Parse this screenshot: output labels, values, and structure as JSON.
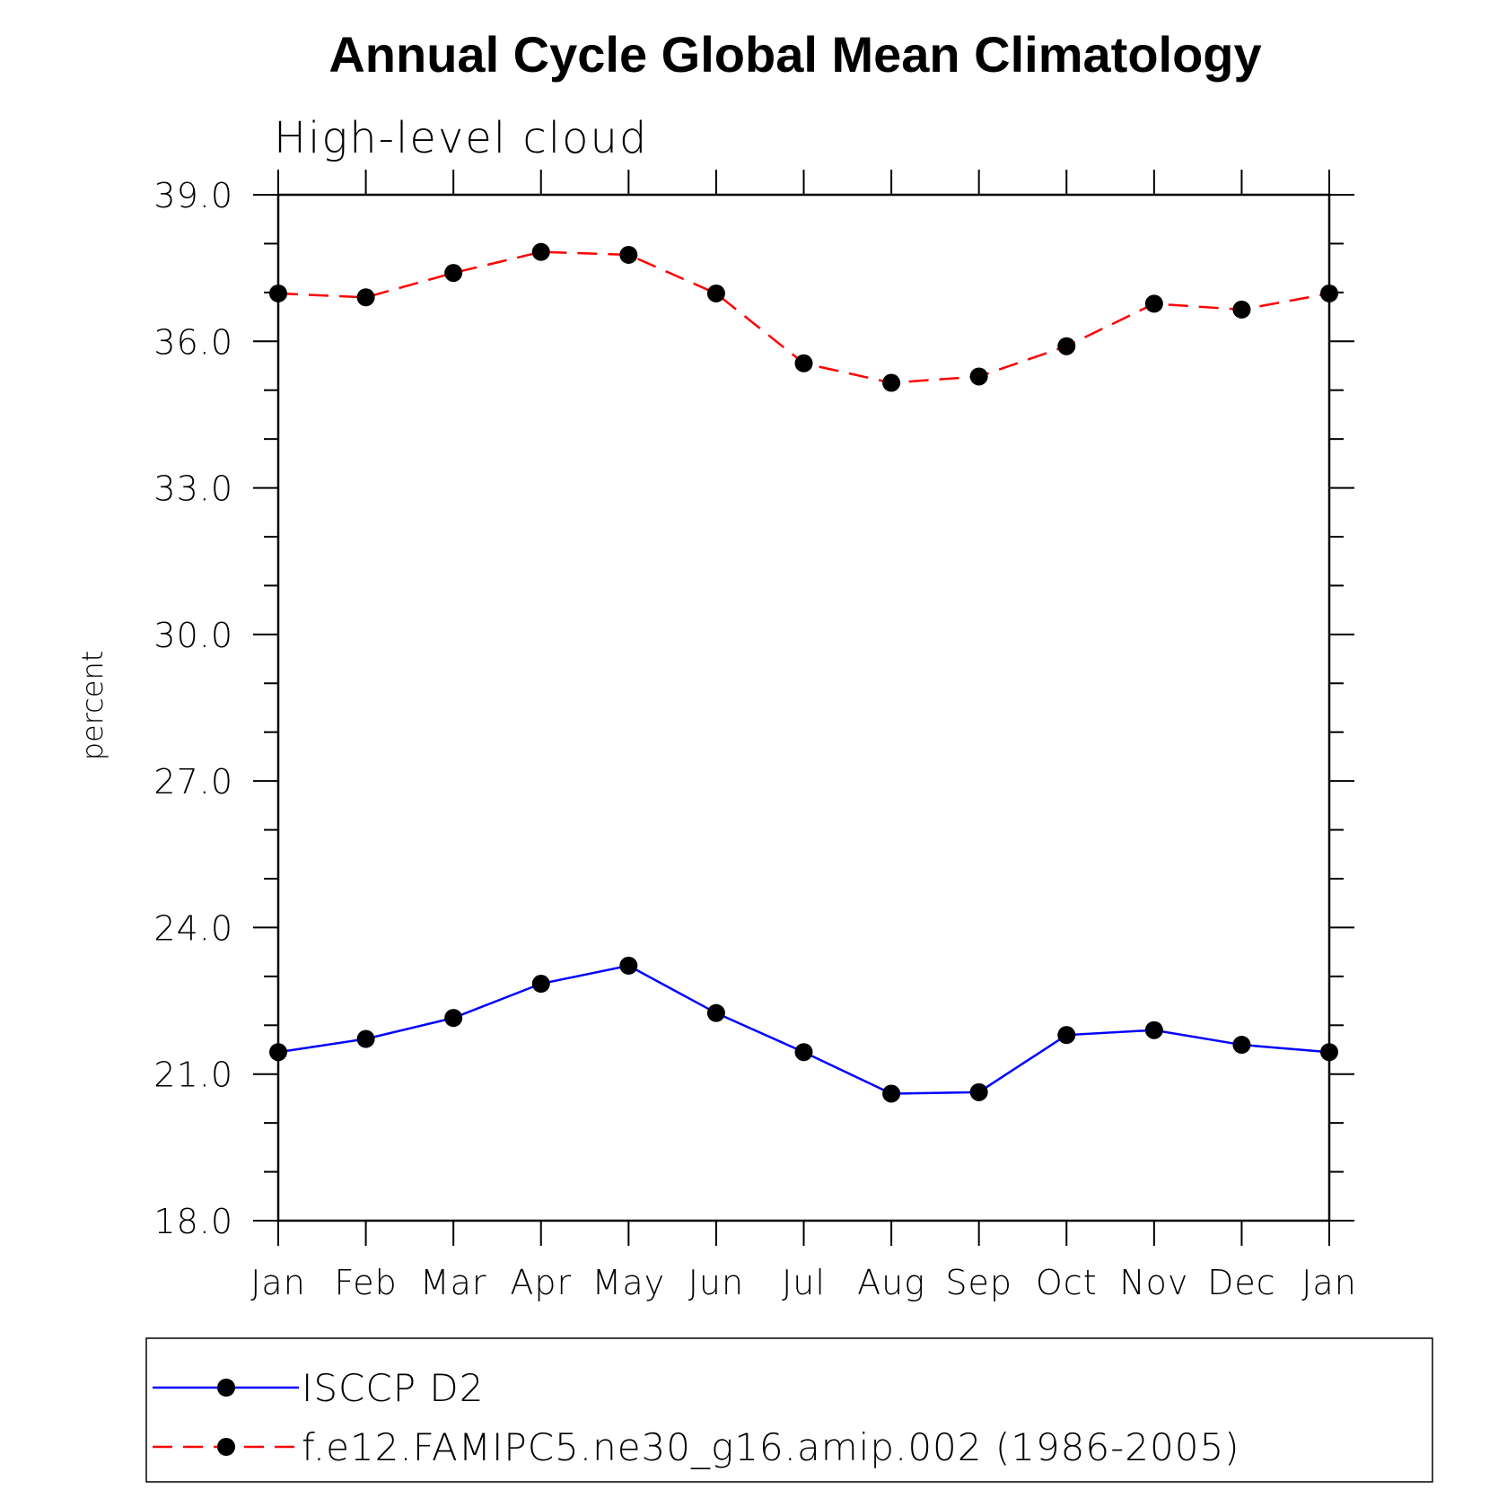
{
  "chart_data": {
    "type": "line",
    "title": "Annual Cycle Global Mean Climatology",
    "subtitle": "High-level cloud",
    "ylabel": "percent",
    "xlabel": "",
    "categories": [
      "Jan",
      "Feb",
      "Mar",
      "Apr",
      "May",
      "Jun",
      "Jul",
      "Aug",
      "Sep",
      "Oct",
      "Nov",
      "Dec",
      "Jan"
    ],
    "ylim": [
      18.0,
      39.0
    ],
    "yticks": [
      "18.0",
      "21.0",
      "24.0",
      "27.0",
      "30.0",
      "33.0",
      "36.0",
      "39.0"
    ],
    "grid": false,
    "legend_position": "bottom",
    "series": [
      {
        "name": "ISCCP D2",
        "color": "#0000ff",
        "line_style": "solid",
        "marker": "filled-circle",
        "values": [
          21.45,
          21.72,
          22.15,
          22.85,
          23.22,
          22.25,
          21.45,
          20.6,
          20.63,
          21.8,
          21.9,
          21.6,
          21.45
        ]
      },
      {
        "name": "f.e12.FAMIPC5.ne30_g16.amip.002 (1986-2005)",
        "color": "#ff0000",
        "line_style": "dashed",
        "marker": "filled-circle",
        "values": [
          36.98,
          36.9,
          37.4,
          37.83,
          37.77,
          36.98,
          35.55,
          35.15,
          35.28,
          35.9,
          36.77,
          36.65,
          36.98
        ]
      }
    ]
  }
}
